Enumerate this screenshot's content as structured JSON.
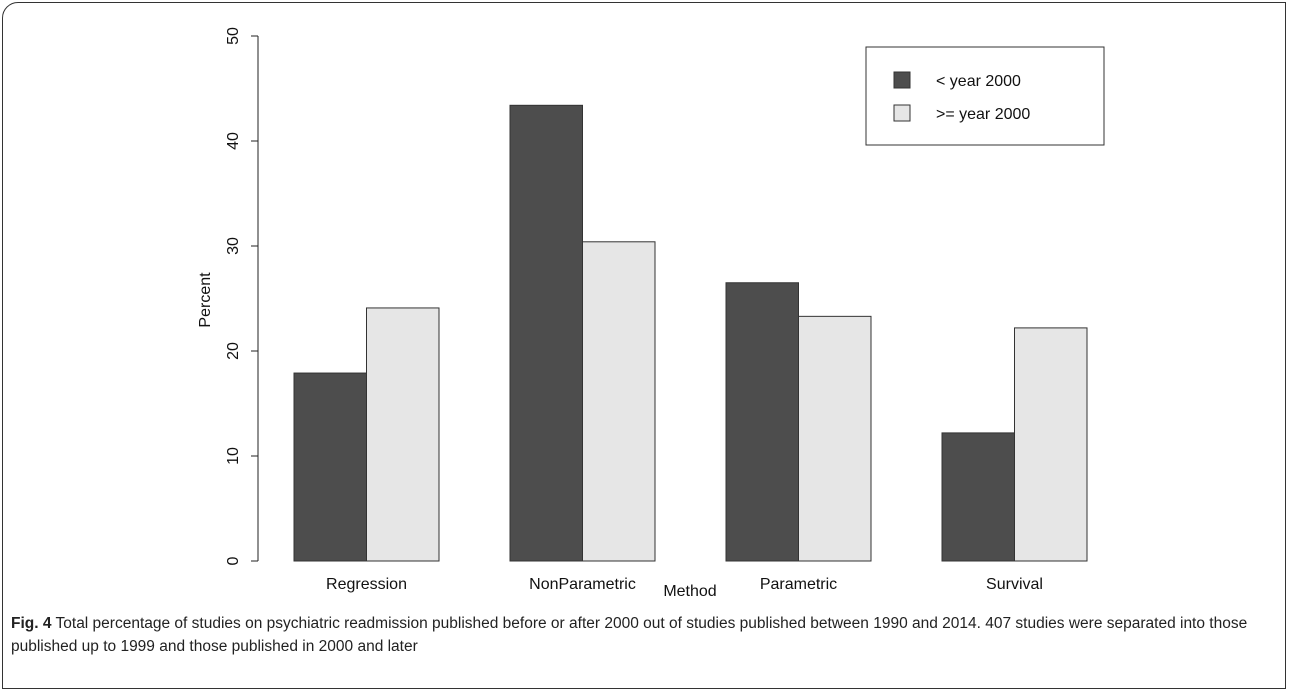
{
  "chart_data": {
    "type": "bar",
    "categories": [
      "Regression",
      "NonParametric",
      "Parametric",
      "Survival"
    ],
    "series": [
      {
        "name": "< year 2000",
        "values": [
          17.9,
          43.4,
          26.5,
          12.2
        ]
      },
      {
        "name": ">= year 2000",
        "values": [
          24.1,
          30.4,
          23.3,
          22.2
        ]
      }
    ],
    "title": "",
    "xlabel": "Method",
    "ylabel": "Percent",
    "ylim": [
      0,
      50
    ],
    "yticks": [
      0,
      10,
      20,
      30,
      40,
      50
    ],
    "grid": false,
    "legend_position": "top-right",
    "colors": [
      "#4d4d4d",
      "#e6e6e6"
    ]
  },
  "caption": {
    "label": "Fig. 4",
    "text": " Total percentage of studies on psychiatric readmission published before or after 2000 out of studies published between 1990 and 2014. 407 studies were separated into those published up to 1999 and those published in 2000 and later"
  }
}
